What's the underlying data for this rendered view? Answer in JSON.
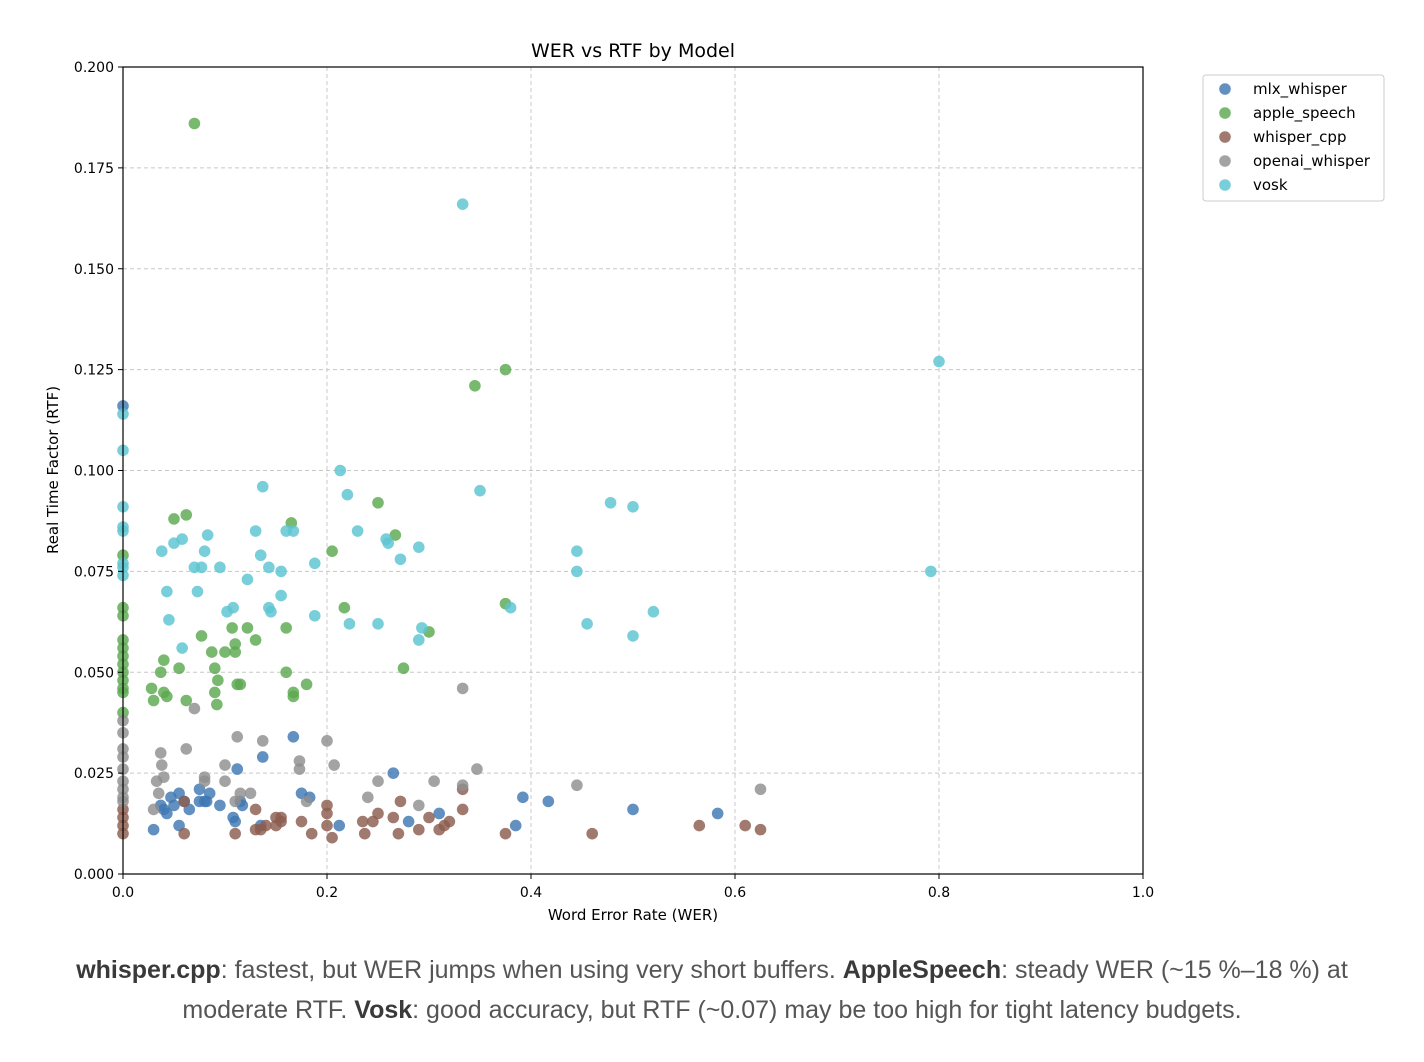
{
  "chart_data": {
    "type": "scatter",
    "title": "WER vs RTF by Model",
    "xlabel": "Word Error Rate (WER)",
    "ylabel": "Real Time Factor (RTF)",
    "xlim": [
      0.0,
      1.0
    ],
    "ylim": [
      0.0,
      0.2
    ],
    "xticks": [
      "0.0",
      "0.2",
      "0.4",
      "0.6",
      "0.8",
      "1.0"
    ],
    "yticks": [
      "0.000",
      "0.025",
      "0.050",
      "0.075",
      "0.100",
      "0.125",
      "0.150",
      "0.175",
      "0.200"
    ],
    "grid": true,
    "legend_position": "outside-top-right",
    "series": [
      {
        "name": "mlx_whisper",
        "color": "#3f78b3",
        "points": [
          [
            0.0,
            0.116
          ],
          [
            0.03,
            0.011
          ],
          [
            0.037,
            0.017
          ],
          [
            0.04,
            0.016
          ],
          [
            0.043,
            0.015
          ],
          [
            0.047,
            0.019
          ],
          [
            0.05,
            0.017
          ],
          [
            0.055,
            0.02
          ],
          [
            0.055,
            0.012
          ],
          [
            0.06,
            0.018
          ],
          [
            0.065,
            0.016
          ],
          [
            0.075,
            0.021
          ],
          [
            0.075,
            0.018
          ],
          [
            0.08,
            0.018
          ],
          [
            0.082,
            0.018
          ],
          [
            0.085,
            0.02
          ],
          [
            0.095,
            0.017
          ],
          [
            0.108,
            0.014
          ],
          [
            0.11,
            0.013
          ],
          [
            0.112,
            0.026
          ],
          [
            0.115,
            0.018
          ],
          [
            0.117,
            0.017
          ],
          [
            0.135,
            0.012
          ],
          [
            0.137,
            0.029
          ],
          [
            0.167,
            0.034
          ],
          [
            0.175,
            0.02
          ],
          [
            0.183,
            0.019
          ],
          [
            0.212,
            0.012
          ],
          [
            0.265,
            0.025
          ],
          [
            0.28,
            0.013
          ],
          [
            0.31,
            0.015
          ],
          [
            0.385,
            0.012
          ],
          [
            0.392,
            0.019
          ],
          [
            0.417,
            0.018
          ],
          [
            0.5,
            0.016
          ],
          [
            0.583,
            0.015
          ]
        ]
      },
      {
        "name": "apple_speech",
        "color": "#5ca84f",
        "points": [
          [
            0.0,
            0.079
          ],
          [
            0.0,
            0.066
          ],
          [
            0.0,
            0.064
          ],
          [
            0.0,
            0.058
          ],
          [
            0.0,
            0.056
          ],
          [
            0.0,
            0.054
          ],
          [
            0.0,
            0.052
          ],
          [
            0.0,
            0.05
          ],
          [
            0.0,
            0.048
          ],
          [
            0.0,
            0.046
          ],
          [
            0.0,
            0.045
          ],
          [
            0.0,
            0.04
          ],
          [
            0.028,
            0.046
          ],
          [
            0.03,
            0.043
          ],
          [
            0.037,
            0.05
          ],
          [
            0.04,
            0.053
          ],
          [
            0.04,
            0.045
          ],
          [
            0.043,
            0.044
          ],
          [
            0.05,
            0.088
          ],
          [
            0.055,
            0.051
          ],
          [
            0.062,
            0.089
          ],
          [
            0.062,
            0.043
          ],
          [
            0.07,
            0.186
          ],
          [
            0.077,
            0.059
          ],
          [
            0.087,
            0.055
          ],
          [
            0.09,
            0.051
          ],
          [
            0.09,
            0.045
          ],
          [
            0.092,
            0.042
          ],
          [
            0.093,
            0.048
          ],
          [
            0.1,
            0.055
          ],
          [
            0.107,
            0.061
          ],
          [
            0.11,
            0.057
          ],
          [
            0.11,
            0.055
          ],
          [
            0.112,
            0.047
          ],
          [
            0.115,
            0.047
          ],
          [
            0.122,
            0.061
          ],
          [
            0.13,
            0.058
          ],
          [
            0.16,
            0.061
          ],
          [
            0.16,
            0.05
          ],
          [
            0.165,
            0.087
          ],
          [
            0.167,
            0.045
          ],
          [
            0.167,
            0.044
          ],
          [
            0.18,
            0.047
          ],
          [
            0.205,
            0.08
          ],
          [
            0.217,
            0.066
          ],
          [
            0.25,
            0.092
          ],
          [
            0.267,
            0.084
          ],
          [
            0.275,
            0.051
          ],
          [
            0.3,
            0.06
          ],
          [
            0.345,
            0.121
          ],
          [
            0.375,
            0.125
          ],
          [
            0.375,
            0.067
          ]
        ]
      },
      {
        "name": "whisper_cpp",
        "color": "#8c5d4f",
        "points": [
          [
            0.0,
            0.016
          ],
          [
            0.0,
            0.014
          ],
          [
            0.0,
            0.012
          ],
          [
            0.0,
            0.01
          ],
          [
            0.06,
            0.01
          ],
          [
            0.06,
            0.018
          ],
          [
            0.11,
            0.01
          ],
          [
            0.13,
            0.016
          ],
          [
            0.13,
            0.011
          ],
          [
            0.135,
            0.011
          ],
          [
            0.14,
            0.012
          ],
          [
            0.15,
            0.014
          ],
          [
            0.15,
            0.012
          ],
          [
            0.155,
            0.013
          ],
          [
            0.155,
            0.014
          ],
          [
            0.175,
            0.013
          ],
          [
            0.185,
            0.01
          ],
          [
            0.2,
            0.017
          ],
          [
            0.2,
            0.015
          ],
          [
            0.2,
            0.012
          ],
          [
            0.205,
            0.009
          ],
          [
            0.235,
            0.013
          ],
          [
            0.237,
            0.01
          ],
          [
            0.245,
            0.013
          ],
          [
            0.25,
            0.015
          ],
          [
            0.265,
            0.014
          ],
          [
            0.27,
            0.01
          ],
          [
            0.272,
            0.018
          ],
          [
            0.29,
            0.011
          ],
          [
            0.3,
            0.014
          ],
          [
            0.31,
            0.011
          ],
          [
            0.315,
            0.012
          ],
          [
            0.32,
            0.013
          ],
          [
            0.333,
            0.021
          ],
          [
            0.333,
            0.016
          ],
          [
            0.375,
            0.01
          ],
          [
            0.46,
            0.01
          ],
          [
            0.565,
            0.012
          ],
          [
            0.61,
            0.012
          ],
          [
            0.625,
            0.011
          ]
        ]
      },
      {
        "name": "openai_whisper",
        "color": "#8f8f8f",
        "points": [
          [
            0.0,
            0.038
          ],
          [
            0.0,
            0.035
          ],
          [
            0.0,
            0.031
          ],
          [
            0.0,
            0.029
          ],
          [
            0.0,
            0.026
          ],
          [
            0.0,
            0.023
          ],
          [
            0.0,
            0.021
          ],
          [
            0.0,
            0.019
          ],
          [
            0.0,
            0.018
          ],
          [
            0.03,
            0.016
          ],
          [
            0.033,
            0.023
          ],
          [
            0.035,
            0.02
          ],
          [
            0.037,
            0.03
          ],
          [
            0.038,
            0.027
          ],
          [
            0.04,
            0.024
          ],
          [
            0.062,
            0.031
          ],
          [
            0.07,
            0.041
          ],
          [
            0.08,
            0.023
          ],
          [
            0.08,
            0.024
          ],
          [
            0.1,
            0.027
          ],
          [
            0.1,
            0.023
          ],
          [
            0.11,
            0.018
          ],
          [
            0.112,
            0.034
          ],
          [
            0.115,
            0.02
          ],
          [
            0.125,
            0.02
          ],
          [
            0.137,
            0.033
          ],
          [
            0.173,
            0.028
          ],
          [
            0.173,
            0.026
          ],
          [
            0.18,
            0.018
          ],
          [
            0.2,
            0.033
          ],
          [
            0.207,
            0.027
          ],
          [
            0.24,
            0.019
          ],
          [
            0.25,
            0.023
          ],
          [
            0.29,
            0.017
          ],
          [
            0.305,
            0.023
          ],
          [
            0.333,
            0.046
          ],
          [
            0.333,
            0.022
          ],
          [
            0.347,
            0.026
          ],
          [
            0.445,
            0.022
          ],
          [
            0.625,
            0.021
          ]
        ]
      },
      {
        "name": "vosk",
        "color": "#5bc4d1",
        "points": [
          [
            0.0,
            0.114
          ],
          [
            0.0,
            0.105
          ],
          [
            0.0,
            0.091
          ],
          [
            0.0,
            0.086
          ],
          [
            0.0,
            0.085
          ],
          [
            0.0,
            0.077
          ],
          [
            0.0,
            0.076
          ],
          [
            0.0,
            0.074
          ],
          [
            0.038,
            0.08
          ],
          [
            0.043,
            0.07
          ],
          [
            0.045,
            0.063
          ],
          [
            0.05,
            0.082
          ],
          [
            0.058,
            0.083
          ],
          [
            0.058,
            0.056
          ],
          [
            0.07,
            0.076
          ],
          [
            0.073,
            0.07
          ],
          [
            0.077,
            0.076
          ],
          [
            0.08,
            0.08
          ],
          [
            0.083,
            0.084
          ],
          [
            0.095,
            0.076
          ],
          [
            0.102,
            0.065
          ],
          [
            0.108,
            0.066
          ],
          [
            0.122,
            0.073
          ],
          [
            0.13,
            0.085
          ],
          [
            0.135,
            0.079
          ],
          [
            0.137,
            0.096
          ],
          [
            0.143,
            0.076
          ],
          [
            0.143,
            0.066
          ],
          [
            0.145,
            0.065
          ],
          [
            0.155,
            0.075
          ],
          [
            0.155,
            0.069
          ],
          [
            0.16,
            0.085
          ],
          [
            0.167,
            0.085
          ],
          [
            0.188,
            0.077
          ],
          [
            0.188,
            0.064
          ],
          [
            0.213,
            0.1
          ],
          [
            0.22,
            0.094
          ],
          [
            0.222,
            0.062
          ],
          [
            0.23,
            0.085
          ],
          [
            0.25,
            0.062
          ],
          [
            0.258,
            0.083
          ],
          [
            0.26,
            0.082
          ],
          [
            0.272,
            0.078
          ],
          [
            0.29,
            0.081
          ],
          [
            0.29,
            0.058
          ],
          [
            0.293,
            0.061
          ],
          [
            0.333,
            0.166
          ],
          [
            0.35,
            0.095
          ],
          [
            0.38,
            0.066
          ],
          [
            0.445,
            0.08
          ],
          [
            0.445,
            0.075
          ],
          [
            0.455,
            0.062
          ],
          [
            0.478,
            0.092
          ],
          [
            0.5,
            0.091
          ],
          [
            0.5,
            0.059
          ],
          [
            0.52,
            0.065
          ],
          [
            0.792,
            0.075
          ],
          [
            0.8,
            0.127
          ]
        ]
      }
    ]
  },
  "caption": {
    "b1": "whisper.cpp",
    "t1": ": fastest, but WER jumps when using very short buffers. ",
    "b2": "AppleSpeech",
    "t2": ": steady WER (~15 %–18 %) at moderate RTF. ",
    "b3": "Vosk",
    "t3": ": good accuracy, but RTF (~0.07) may be too high for tight latency budgets."
  }
}
